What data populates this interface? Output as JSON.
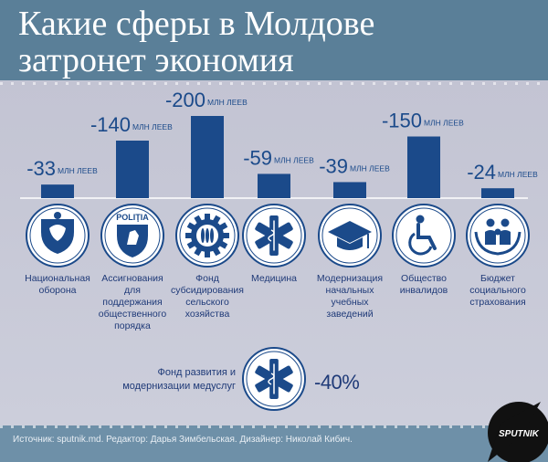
{
  "header": {
    "title_line1": "Какие сферы в Молдове",
    "title_line2": "затронет экономия"
  },
  "chart_data": {
    "type": "bar",
    "unit": "МЛН ЛЕЕВ",
    "categories": [
      "Национальная оборона",
      "Ассигнования для поддержания общественного порядка",
      "Фонд субсидирования сельского хозяйства",
      "Медицина",
      "Модернизация начальных учебных заведений",
      "Общество инвалидов",
      "Бюджет социального страхования"
    ],
    "values": [
      -33,
      -140,
      -200,
      -59,
      -39,
      -150,
      -24
    ],
    "value_labels": [
      "-33",
      "-140",
      "-200",
      "-59",
      "-39",
      "-150",
      "-24"
    ],
    "bar_color": "#1b4a8a"
  },
  "categories": [
    {
      "lines": [
        "Национальная",
        "оборона"
      ],
      "icon": "defense-emblem-icon"
    },
    {
      "lines": [
        "Ассигнования",
        "для",
        "поддержания",
        "общественного",
        "порядка"
      ],
      "icon": "police-emblem-icon",
      "badge": "POLIŢIA"
    },
    {
      "lines": [
        "Фонд",
        "субсидирования",
        "сельского",
        "хозяйства"
      ],
      "icon": "wheat-gear-icon"
    },
    {
      "lines": [
        "Медицина"
      ],
      "icon": "star-of-life-icon"
    },
    {
      "lines": [
        "Модернизация",
        "начальных",
        "учебных",
        "заведений"
      ],
      "icon": "graduation-cap-icon"
    },
    {
      "lines": [
        "Общество",
        "инвалидов"
      ],
      "icon": "wheelchair-icon"
    },
    {
      "lines": [
        "Бюджет",
        "социального",
        "страхования"
      ],
      "icon": "family-hands-icon"
    }
  ],
  "fund": {
    "label_line1": "Фонд развития и",
    "label_line2": "модернизации медуслуг",
    "value": "-40%",
    "icon": "star-of-life-icon"
  },
  "footer": {
    "source": "Источник: sputnik.md. Редактор: Дарья Зимбельская. Дизайнер: Николай Кибич.",
    "logo_text": "SPUTNIK"
  },
  "colors": {
    "title_band": "#5a7f98",
    "background": "#c6c8d6",
    "accent": "#1b4a8a",
    "footer_band": "#6e90a8"
  }
}
